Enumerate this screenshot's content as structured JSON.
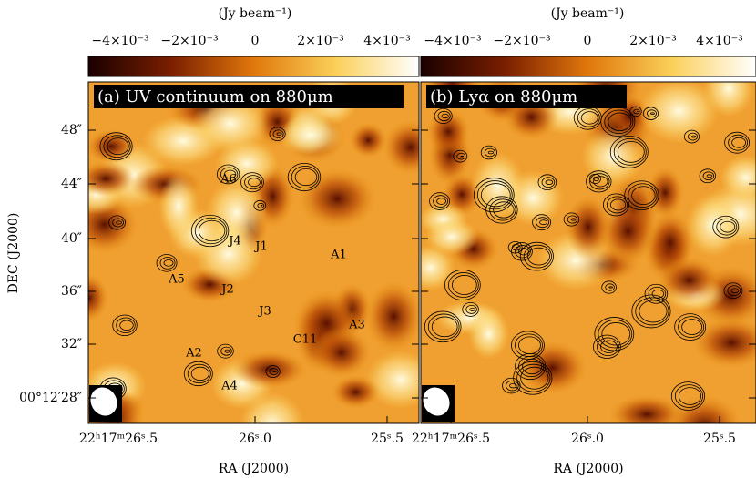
{
  "colorbar": {
    "label": "(Jy beam⁻¹)",
    "ticks": [
      "−4×10⁻³",
      "−2×10⁻³",
      "0",
      "2×10⁻³",
      "4×10⁻³"
    ]
  },
  "panels": [
    {
      "title": "(a) UV continuum on 880μm"
    },
    {
      "title": "(b) Lyα on 880μm"
    }
  ],
  "y_axis": {
    "label": "DEC (J2000)",
    "ticks": [
      "48″",
      "44″",
      "40″",
      "36″",
      "32″",
      "00°12′28″"
    ]
  },
  "x_axis": {
    "label": "RA (J2000)",
    "ticks": [
      "22ʰ17ᵐ26ˢ.5",
      "26ˢ.0",
      "25ˢ.5"
    ]
  },
  "sources": [
    {
      "label": "A1"
    },
    {
      "label": "A2"
    },
    {
      "label": "A3"
    },
    {
      "label": "A4"
    },
    {
      "label": "A5"
    },
    {
      "label": "A6"
    },
    {
      "label": "J1"
    },
    {
      "label": "J2"
    },
    {
      "label": "J3"
    },
    {
      "label": "J4"
    },
    {
      "label": "C11"
    }
  ]
}
